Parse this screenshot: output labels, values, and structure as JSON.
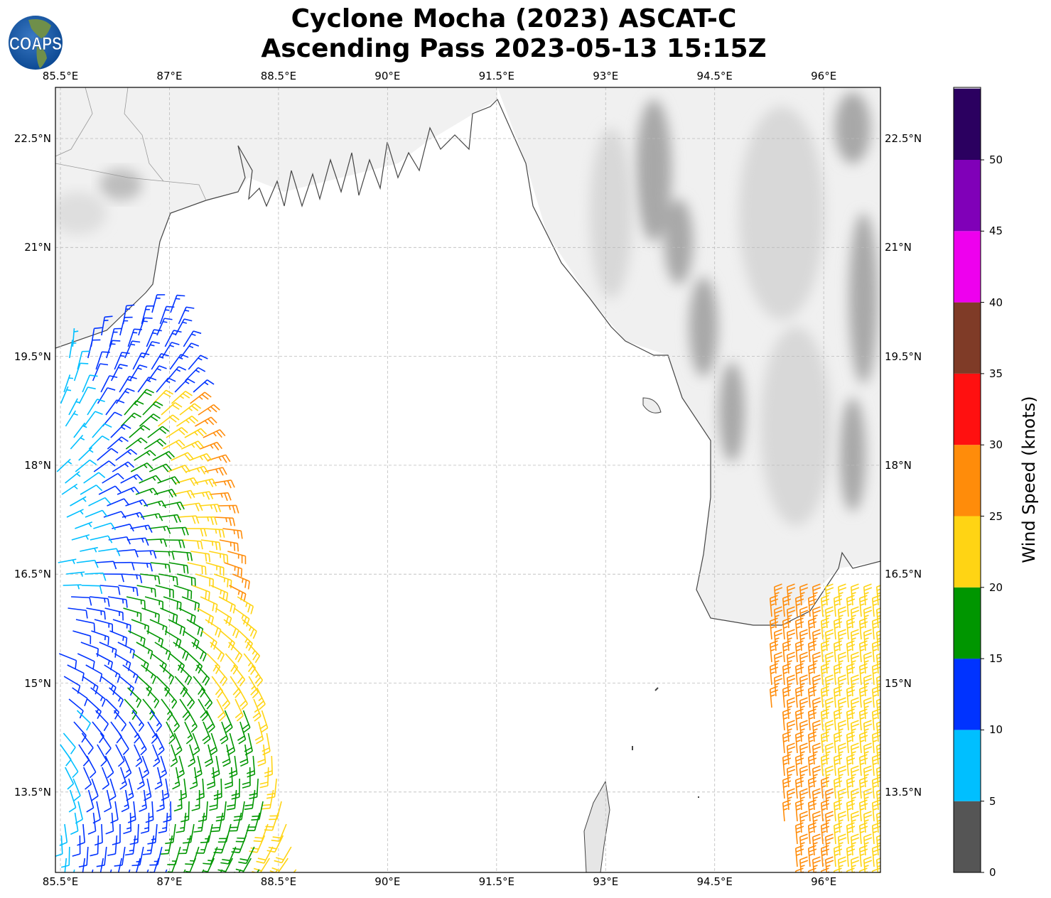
{
  "title": {
    "line1": "Cyclone Mocha (2023) ASCAT-C",
    "line2": "Ascending Pass 2023-05-13 15:15Z"
  },
  "logo": {
    "text": "COAPS"
  },
  "map": {
    "lon_ticks": [
      "85.5°E",
      "87°E",
      "88.5°E",
      "90°E",
      "91.5°E",
      "93°E",
      "94.5°E",
      "96°E"
    ],
    "lat_ticks": [
      "22.5°N",
      "21°N",
      "19.5°N",
      "18°N",
      "16.5°N",
      "15°N",
      "13.5°N"
    ],
    "lon_values": [
      85.5,
      87,
      88.5,
      90,
      91.5,
      93,
      94.5,
      96
    ],
    "lat_values": [
      22.5,
      21,
      19.5,
      18,
      16.5,
      15,
      13.5
    ]
  },
  "colorbar": {
    "label": "Wind Speed (knots)",
    "ticks": [
      "0",
      "5",
      "10",
      "15",
      "20",
      "25",
      "30",
      "35",
      "40",
      "45",
      "50"
    ],
    "bins": [
      {
        "min": 0,
        "max": 5,
        "color": "#555555"
      },
      {
        "min": 5,
        "max": 10,
        "color": "#00bfff"
      },
      {
        "min": 10,
        "max": 15,
        "color": "#0033ff"
      },
      {
        "min": 15,
        "max": 20,
        "color": "#009600"
      },
      {
        "min": 20,
        "max": 25,
        "color": "#ffd414"
      },
      {
        "min": 25,
        "max": 30,
        "color": "#ff8c0a"
      },
      {
        "min": 30,
        "max": 35,
        "color": "#ff1010"
      },
      {
        "min": 35,
        "max": 40,
        "color": "#7f3b27"
      },
      {
        "min": 40,
        "max": 45,
        "color": "#ee00ee"
      },
      {
        "min": 45,
        "max": 50,
        "color": "#8000b8"
      },
      {
        "min": 50,
        "max": 55,
        "color": "#2b0060"
      }
    ]
  }
}
